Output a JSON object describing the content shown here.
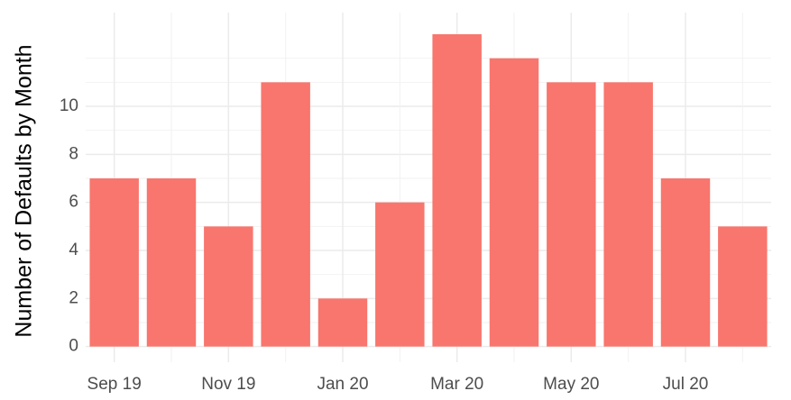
{
  "chart_data": {
    "type": "bar",
    "y_label": "Number of Defaults by Month",
    "categories": [
      "Sep 19",
      null,
      "Nov 19",
      null,
      "Jan 20",
      null,
      "Mar 20",
      null,
      "May 20",
      null,
      "Jul 20",
      null
    ],
    "values": [
      7,
      7,
      5,
      11,
      2,
      6,
      13,
      12,
      11,
      11,
      7,
      5
    ],
    "color": "#f8766d",
    "ylim": [
      -0.65,
      13.9
    ],
    "yticks": [
      0,
      2,
      4,
      6,
      8,
      10
    ],
    "y_minor_ticks": [
      1,
      3,
      5,
      7,
      9,
      11,
      12
    ],
    "grid": true
  }
}
